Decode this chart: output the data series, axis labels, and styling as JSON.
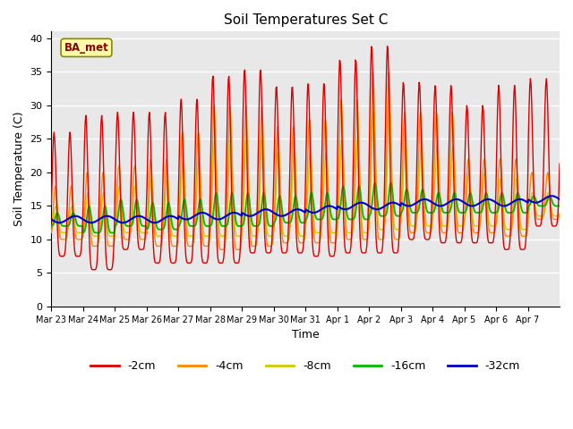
{
  "title": "Soil Temperatures Set C",
  "xlabel": "Time",
  "ylabel": "Soil Temperature (C)",
  "ylim": [
    0,
    41
  ],
  "yticks": [
    0,
    5,
    10,
    15,
    20,
    25,
    30,
    35,
    40
  ],
  "background_color": "#e8e8e8",
  "legend_label": "BA_met",
  "colors": {
    "-2cm": "#dd0000",
    "-4cm": "#ff8800",
    "-8cm": "#cccc00",
    "-16cm": "#00bb00",
    "-32cm": "#0000cc"
  },
  "depths": [
    "-2cm",
    "-4cm",
    "-8cm",
    "-16cm",
    "-32cm"
  ],
  "n_days": 16,
  "tick_labels": [
    "Mar 23",
    "Mar 24",
    "Mar 25",
    "Mar 26",
    "Mar 27",
    "Mar 28",
    "Mar 29",
    "Mar 30",
    "Mar 31",
    "Apr 1",
    "Apr 2",
    "Apr 3",
    "Apr 4",
    "Apr 5",
    "Apr 6",
    "Apr 7"
  ],
  "peaks_2cm": [
    26,
    28.5,
    29,
    29,
    31,
    34.5,
    35.5,
    33,
    33.5,
    37,
    39,
    33.5,
    33,
    30,
    33,
    34
  ],
  "troughs_2cm": [
    7.5,
    5.5,
    8.5,
    6.5,
    6.5,
    6.5,
    8,
    8,
    7.5,
    8,
    8,
    10,
    9.5,
    9.5,
    8.5,
    12
  ],
  "peaks_4cm": [
    18,
    20,
    21,
    22,
    26,
    30,
    30,
    27,
    28,
    31,
    35,
    29,
    29,
    22,
    22,
    20
  ],
  "troughs_4cm": [
    10,
    9,
    10,
    9,
    9,
    8.5,
    9,
    9.5,
    9.5,
    10,
    10,
    11,
    11,
    11,
    10.5,
    13
  ],
  "peaks_8cm": [
    15,
    17,
    18,
    19,
    22,
    25,
    25,
    23,
    23,
    25,
    29,
    24,
    24,
    20,
    19,
    17
  ],
  "troughs_8cm": [
    11,
    10.5,
    11,
    10.5,
    10.5,
    10.5,
    10.5,
    10.5,
    11,
    11,
    11.5,
    12,
    12,
    12,
    11.5,
    13.5
  ],
  "peaks_16cm": [
    14,
    15,
    16,
    15.5,
    16,
    17,
    17,
    16.5,
    17,
    18,
    18.5,
    17.5,
    17,
    17,
    17,
    16.5
  ],
  "troughs_16cm": [
    12,
    11,
    12,
    11.5,
    12,
    12,
    12,
    12.5,
    13,
    13,
    13.5,
    14,
    14,
    14,
    14,
    15
  ],
  "base_32cm": [
    13,
    13,
    13,
    13,
    13.5,
    13.5,
    14,
    14,
    14.5,
    15,
    15,
    15.5,
    15.5,
    15.5,
    15.5,
    16
  ],
  "amp_32cm": 0.5
}
